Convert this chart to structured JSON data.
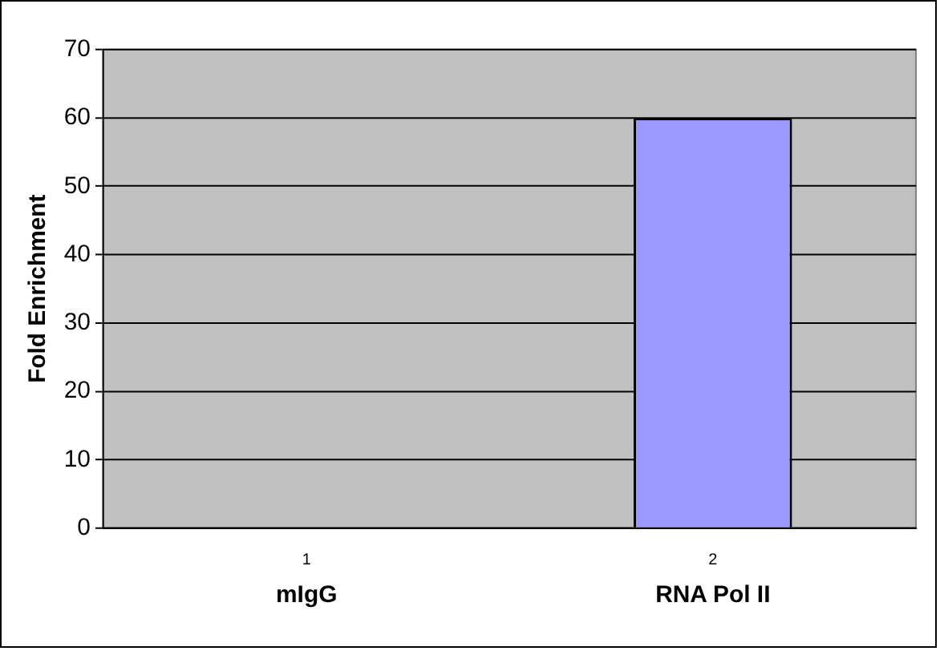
{
  "chart_data": {
    "type": "bar",
    "ylabel": "Fold Enrichment",
    "categories": [
      "1",
      "2"
    ],
    "values": [
      0,
      60
    ],
    "color": "#9999ff",
    "ylim": [
      0,
      70
    ],
    "yticks": [
      0,
      10,
      20,
      30,
      40,
      50,
      60,
      70
    ],
    "grid": "y",
    "annotations": [
      "mIgG",
      "RNA Pol II"
    ]
  }
}
